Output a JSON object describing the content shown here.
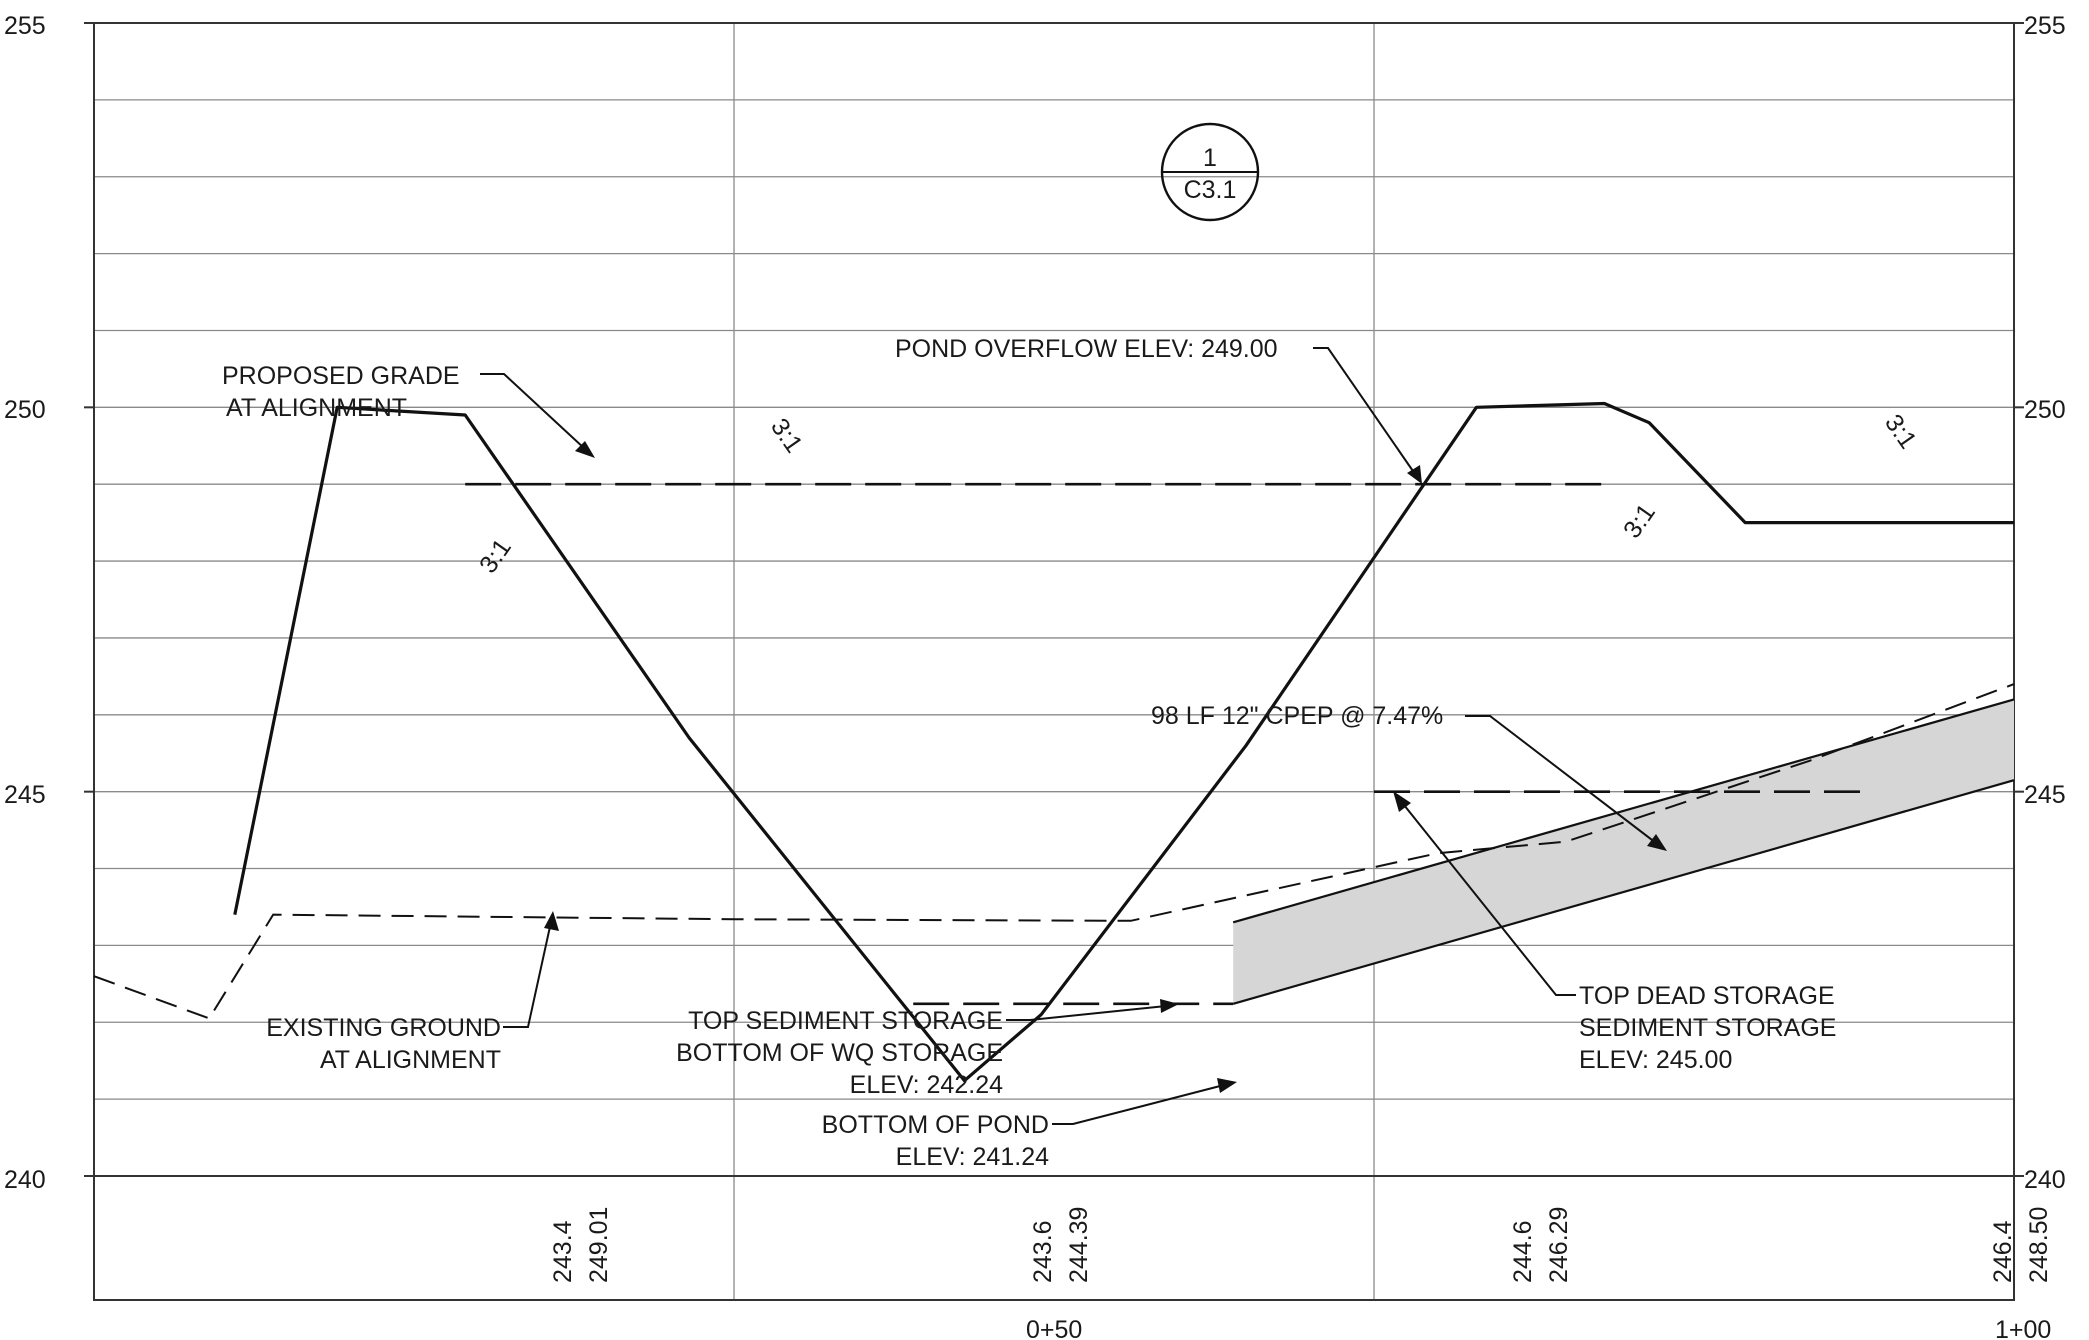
{
  "elevation_labels": [
    "255",
    "250",
    "245",
    "240"
  ],
  "station_labels": [
    "0+50",
    "1+00"
  ],
  "bottom_values": [
    {
      "existing": "243.4",
      "proposed": "249.01"
    },
    {
      "existing": "243.6",
      "proposed": "244.39"
    },
    {
      "existing": "244.6",
      "proposed": "246.29"
    },
    {
      "existing": "246.4",
      "proposed": "248.50"
    }
  ],
  "section_callout": {
    "number": "1",
    "sheet": "C3.1"
  },
  "slope_labels": [
    "3:1",
    "3:1",
    "3:1",
    "3:1"
  ],
  "notes": {
    "proposed_grade": [
      "PROPOSED GRADE",
      "AT ALIGNMENT"
    ],
    "existing_ground": [
      "EXISTING GROUND",
      "AT ALIGNMENT"
    ],
    "pond_overflow": "POND OVERFLOW ELEV: 249.00",
    "pipe": "98 LF 12\" CPEP @ 7.47%",
    "top_sediment": [
      "TOP SEDIMENT STORAGE",
      "BOTTOM OF WQ STORAGE",
      "ELEV: 242.24"
    ],
    "bottom_of_pond": [
      "BOTTOM OF POND",
      "ELEV: 241.24"
    ],
    "top_dead_storage": [
      "TOP DEAD STORAGE",
      "SEDIMENT STORAGE",
      "ELEV: 245.00"
    ]
  },
  "chart_data": {
    "type": "profile",
    "x_axis": {
      "range": [
        -50,
        100
      ],
      "major_ticks": [
        -50,
        0,
        50,
        100
      ],
      "tick_labels": {
        "50": "0+50",
        "100": "1+00"
      }
    },
    "y_axis": {
      "range": [
        240,
        255
      ],
      "grid_interval": 1,
      "labels": [
        255,
        250,
        245,
        240
      ]
    },
    "proposed_grade": [
      [
        -39,
        243.4
      ],
      [
        -31,
        250.0
      ],
      [
        -21,
        249.9
      ],
      [
        -3.5,
        245.7
      ],
      [
        18,
        241.24
      ],
      [
        24,
        242.1
      ],
      [
        40,
        245.6
      ],
      [
        58,
        250.0
      ],
      [
        68,
        250.05
      ],
      [
        71.5,
        249.8
      ],
      [
        79,
        248.5
      ],
      [
        100,
        248.5
      ]
    ],
    "existing_ground": [
      [
        -50,
        242.6
      ],
      [
        -41,
        242.05
      ],
      [
        -36,
        243.4
      ],
      [
        0,
        243.34
      ],
      [
        31,
        243.32
      ],
      [
        55,
        244.2
      ],
      [
        65,
        244.35
      ],
      [
        84,
        245.4
      ],
      [
        100,
        246.4
      ]
    ],
    "pond_overflow_level": {
      "elevation": 249.0,
      "from": -21,
      "to": 68
    },
    "dead_storage_level": {
      "elevation": 245.0,
      "from": 50,
      "to": 89
    },
    "sediment_storage_level": {
      "elevation": 242.24,
      "from": 14,
      "to": 39
    },
    "pipe": {
      "start_station": 39,
      "start_top": 243.3,
      "start_invert": 242.24,
      "end_station": 100,
      "end_top": 246.2,
      "end_invert": 245.15
    },
    "bottom_values": [
      [
        0,
        243.4,
        249.01
      ],
      [
        50,
        243.6,
        244.39
      ],
      [
        100,
        244.6,
        246.29
      ],
      [
        150,
        246.4,
        248.5
      ]
    ]
  }
}
